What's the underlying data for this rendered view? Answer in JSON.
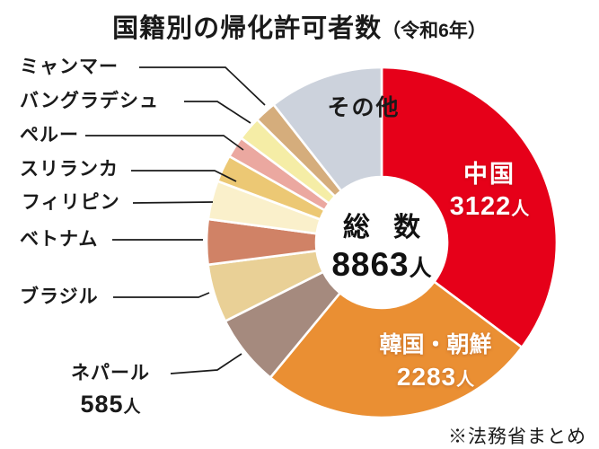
{
  "title": {
    "main": "国籍別の帰化許可者数",
    "note": "（令和6年）"
  },
  "source_note": "※法務省まとめ",
  "center": {
    "label": "総 数",
    "unit": "人"
  },
  "chart_data": {
    "type": "pie",
    "subtype": "donut",
    "title": "国籍別の帰化許可者数（令和6年）",
    "total": 8863,
    "unit": "人",
    "start_angle_deg": 0,
    "direction": "clockwise",
    "donut_hole_ratio": 0.37,
    "separator_color": "#ffffff",
    "slices": [
      {
        "label": "中国",
        "value": 3122,
        "angle_deg": 126.8,
        "color": "#e60019",
        "label_shown_on_chart": true
      },
      {
        "label": "韓国・朝鮮",
        "value": 2283,
        "angle_deg": 92.7,
        "color": "#ea8f33",
        "label_shown_on_chart": true
      },
      {
        "label": "ネパール",
        "value": 585,
        "angle_deg": 23.8,
        "color": "#a58a7e",
        "label_shown_on_chart": false
      },
      {
        "label": "ブラジル",
        "value": null,
        "angle_deg": 19.4,
        "color": "#e9d096",
        "label_shown_on_chart": false
      },
      {
        "label": "ベトナム",
        "value": null,
        "angle_deg": 15.0,
        "color": "#d08266",
        "label_shown_on_chart": false
      },
      {
        "label": "フィリピン",
        "value": null,
        "angle_deg": 12.8,
        "color": "#faf0cb",
        "label_shown_on_chart": false
      },
      {
        "label": "スリランカ",
        "value": null,
        "angle_deg": 9.0,
        "color": "#ecc874",
        "label_shown_on_chart": false
      },
      {
        "label": "ペルー",
        "value": null,
        "angle_deg": 7.1,
        "color": "#eba8a0",
        "label_shown_on_chart": false
      },
      {
        "label": "バングラデシュ",
        "value": null,
        "angle_deg": 8.0,
        "color": "#f5eda6",
        "label_shown_on_chart": false
      },
      {
        "label": "ミャンマー",
        "value": null,
        "angle_deg": 7.3,
        "color": "#d5ad7c",
        "label_shown_on_chart": false
      },
      {
        "label": "その他",
        "value": null,
        "angle_deg": 38.1,
        "color": "#ccd2dc",
        "label_shown_on_chart": true
      }
    ]
  }
}
